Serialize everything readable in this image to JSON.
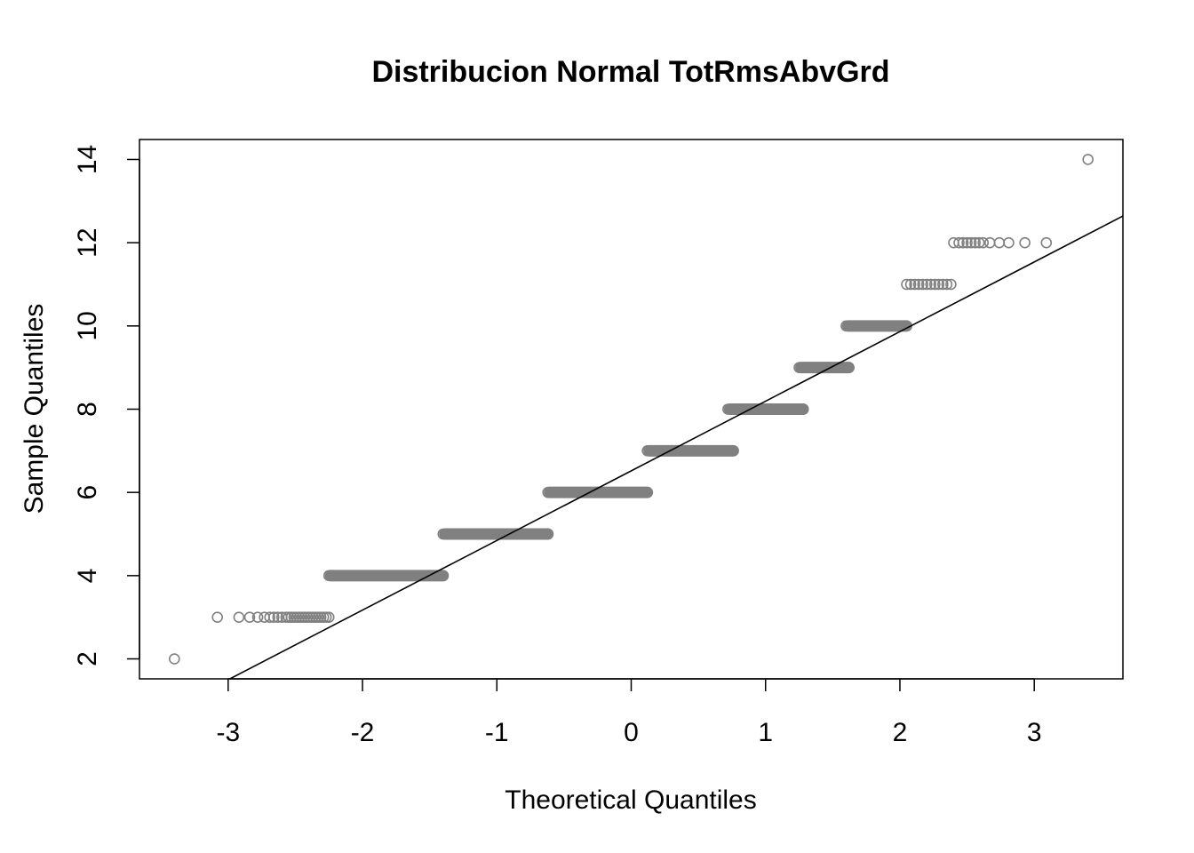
{
  "chart_data": {
    "type": "scatter",
    "title": "Distribucion Normal TotRmsAbvGrd",
    "xlabel": "Theoretical Quantiles",
    "ylabel": "Sample Quantiles",
    "xlim": [
      -3.66,
      3.66
    ],
    "ylim": [
      1.52,
      14.48
    ],
    "x_ticks": [
      -3,
      -2,
      -1,
      0,
      1,
      2,
      3
    ],
    "x_tick_labels": [
      "-3",
      "-2",
      "-1",
      "0",
      "1",
      "2",
      "3"
    ],
    "y_ticks": [
      2,
      4,
      6,
      8,
      10,
      12,
      14
    ],
    "y_tick_labels": [
      "2",
      "4",
      "6",
      "8",
      "10",
      "12",
      "14"
    ],
    "grid": false,
    "legend": "none",
    "point_color": "#808080",
    "line_color": "#000000",
    "series": [
      {
        "x": [
          -3.4,
          -3.08,
          -2.92,
          -2.84,
          -2.78,
          -2.73,
          -2.69,
          -2.66,
          -2.63,
          -2.6,
          -2.57,
          -2.55,
          -2.53,
          -2.51,
          -2.49,
          -2.47,
          -2.45,
          -2.43,
          -2.41,
          -2.39,
          -2.37,
          -2.35,
          -2.33,
          -2.31,
          -2.29,
          -2.27,
          -2.25
        ],
        "y": [
          2,
          3,
          3,
          3,
          3,
          3,
          3,
          3,
          3,
          3,
          3,
          3,
          3,
          3,
          3,
          3,
          3,
          3,
          3,
          3,
          3,
          3,
          3,
          3,
          3,
          3,
          3
        ]
      },
      {
        "x": [
          2.05,
          2.08,
          2.11,
          2.14,
          2.17,
          2.2,
          2.23,
          2.26,
          2.29,
          2.32,
          2.35,
          2.38,
          2.4,
          2.44,
          2.47,
          2.5,
          2.53,
          2.56,
          2.59,
          2.62,
          2.67,
          2.74,
          2.81,
          2.93,
          3.09,
          3.4
        ],
        "y": [
          11,
          11,
          11,
          11,
          11,
          11,
          11,
          11,
          11,
          11,
          11,
          11,
          12,
          12,
          12,
          12,
          12,
          12,
          12,
          12,
          12,
          12,
          12,
          12,
          12,
          14
        ]
      }
    ],
    "dense_bands": [
      {
        "y": 4,
        "x_start": -2.25,
        "x_end": -1.4
      },
      {
        "y": 5,
        "x_start": -1.4,
        "x_end": -0.62
      },
      {
        "y": 6,
        "x_start": -0.62,
        "x_end": 0.12
      },
      {
        "y": 7,
        "x_start": 0.12,
        "x_end": 0.76
      },
      {
        "y": 8,
        "x_start": 0.72,
        "x_end": 1.28
      },
      {
        "y": 9,
        "x_start": 1.25,
        "x_end": 1.62
      },
      {
        "y": 10,
        "x_start": 1.6,
        "x_end": 2.05
      }
    ],
    "reference_line": {
      "intercept": 6.5178,
      "slope": 1.6731
    }
  }
}
